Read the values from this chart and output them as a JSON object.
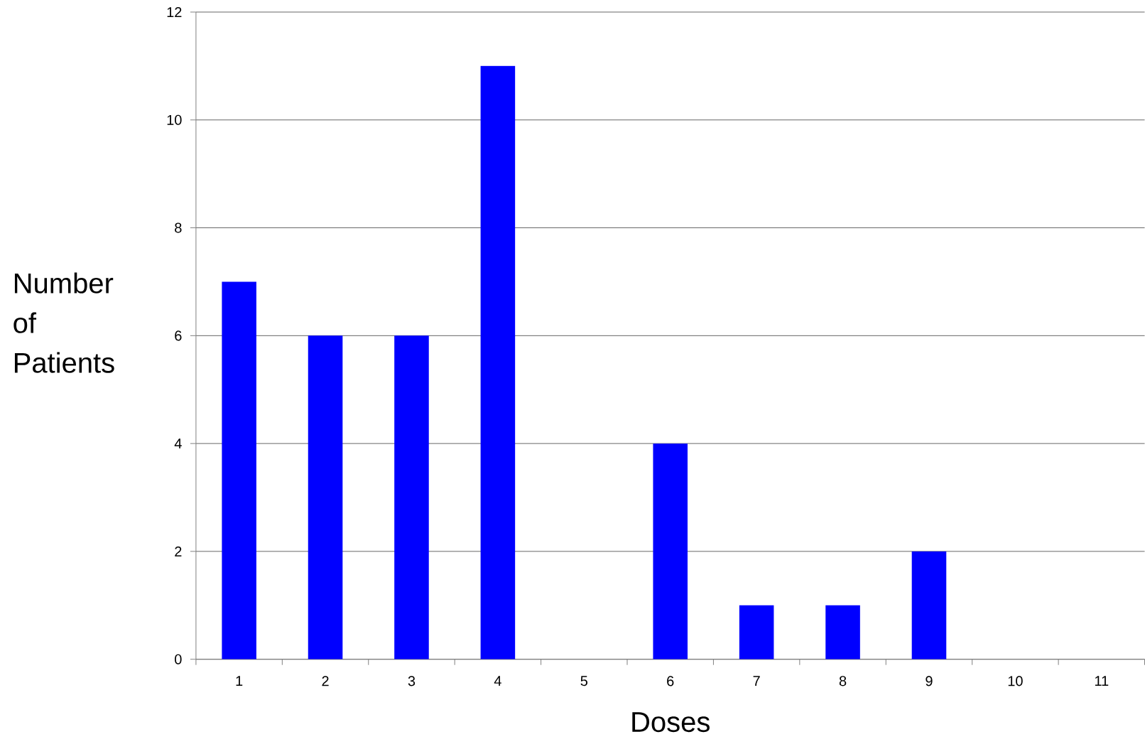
{
  "chart_data": {
    "type": "bar",
    "xlabel": "Doses",
    "ylabel": "Number of Patients",
    "categories": [
      "1",
      "2",
      "3",
      "4",
      "5",
      "6",
      "7",
      "8",
      "9",
      "10",
      "11"
    ],
    "values": [
      7,
      6,
      6,
      11,
      0,
      4,
      1,
      1,
      2,
      0,
      0
    ],
    "color": "#0000ff",
    "ylim": [
      0,
      12
    ],
    "yticks": [
      0,
      2,
      4,
      6,
      8,
      10,
      12
    ],
    "grid": "y"
  }
}
